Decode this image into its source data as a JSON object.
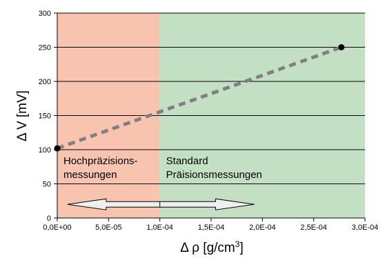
{
  "chart_data": {
    "type": "line",
    "xlabel_main": "Δ ρ [g/cm",
    "xlabel_sup": "3",
    "xlabel_end": "]",
    "ylabel": "Δ V [mV]",
    "xlim": [
      0,
      0.0003
    ],
    "ylim": [
      0,
      300
    ],
    "x_ticks": [
      "0,0E+00",
      "5,0E-05",
      "1,0E-04",
      "1,5E-04",
      "2,0E-04",
      "2,5E-04",
      "3,0E-04"
    ],
    "x_tick_values": [
      0,
      5e-05,
      0.0001,
      0.00015,
      0.0002,
      0.00025,
      0.0003
    ],
    "y_ticks": [
      "0",
      "50",
      "100",
      "150",
      "200",
      "250",
      "300"
    ],
    "y_tick_values": [
      0,
      50,
      100,
      150,
      200,
      250,
      300
    ],
    "grid": "horizontal",
    "series": [
      {
        "x": [
          0,
          0.000277
        ],
        "y": [
          102,
          250
        ],
        "style": "dashed",
        "color": "#808080",
        "marker_color": "#000000"
      }
    ],
    "regions": [
      {
        "x_from": 0,
        "x_to": 0.0001,
        "color": "#f8c4b0",
        "label_lines": [
          "Hochpräzisions-",
          "messungen"
        ]
      },
      {
        "x_from": 0.0001,
        "x_to": 0.0003,
        "color": "#c4e0c4",
        "label_lines": [
          "Standard",
          "Präisionsmessungen"
        ]
      }
    ],
    "arrow": {
      "x_from": 1e-05,
      "x_to": 0.000192,
      "divider_x": 0.0001,
      "y": 20,
      "color": "#efefef"
    }
  }
}
